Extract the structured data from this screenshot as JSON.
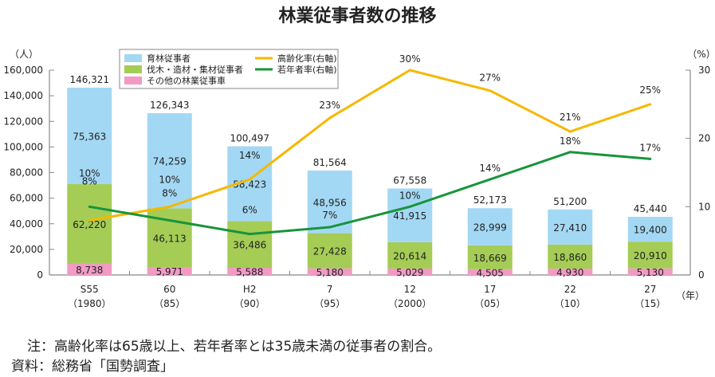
{
  "chart_data": {
    "type": "bar",
    "title": "林業従事者数の推移",
    "left_unit": "（人）",
    "right_unit": "（%）",
    "x_unit": "（年）",
    "categories": [
      {
        "label": "S55",
        "sub": "（1980）"
      },
      {
        "label": "60",
        "sub": "（85）"
      },
      {
        "label": "H2",
        "sub": "（90）"
      },
      {
        "label": "7",
        "sub": "（95）"
      },
      {
        "label": "12",
        "sub": "（2000）"
      },
      {
        "label": "17",
        "sub": "（05）"
      },
      {
        "label": "22",
        "sub": "（10）"
      },
      {
        "label": "27",
        "sub": "（15）"
      }
    ],
    "ylim": [
      0,
      160000
    ],
    "yticks": [
      "0",
      "20,000",
      "40,000",
      "60,000",
      "80,000",
      "100,000",
      "120,000",
      "140,000",
      "160,000"
    ],
    "y2lim": [
      0,
      30
    ],
    "y2ticks": [
      "0",
      "10",
      "20",
      "30"
    ],
    "series": [
      {
        "name": "その他の林業従事車",
        "kind": "bar",
        "color": "#f29ac4",
        "values": [
          8738,
          5971,
          5588,
          5180,
          5029,
          4505,
          4930,
          5130
        ],
        "labels": [
          "8,738",
          "5,971",
          "5,588",
          "5,180",
          "5,029",
          "4,505",
          "4,930",
          "5,130"
        ]
      },
      {
        "name": "伐木・造材・集材従事者",
        "kind": "bar",
        "color": "#a5cc55",
        "values": [
          62220,
          46113,
          36486,
          27428,
          20614,
          18669,
          18860,
          20910
        ],
        "labels": [
          "62,220",
          "46,113",
          "36,486",
          "27,428",
          "20,614",
          "18,669",
          "18,860",
          "20,910"
        ]
      },
      {
        "name": "育林従事者",
        "kind": "bar",
        "color": "#a3d8f4",
        "values": [
          75363,
          74259,
          58423,
          48956,
          41915,
          28999,
          27410,
          19400
        ],
        "labels": [
          "75,363",
          "74,259",
          "58,423",
          "48,956",
          "41,915",
          "28,999",
          "27,410",
          "19,400"
        ]
      },
      {
        "name": "高齢化率(右軸)",
        "kind": "line",
        "color": "#f5b800",
        "values": [
          8,
          10,
          14,
          23,
          30,
          27,
          21,
          25
        ],
        "labels": [
          "8%",
          "10%",
          "14%",
          "23%",
          "30%",
          "27%",
          "21%",
          "25%"
        ]
      },
      {
        "name": "若年者率(右軸)",
        "kind": "line",
        "color": "#17953a",
        "values": [
          10,
          8,
          6,
          7,
          10,
          14,
          18,
          17
        ],
        "labels": [
          "10%",
          "8%",
          "6%",
          "7%",
          "10%",
          "14%",
          "18%",
          "17%"
        ]
      }
    ],
    "totals": [
      "146,321",
      "126,343",
      "100,497",
      "81,564",
      "67,558",
      "52,173",
      "51,200",
      "45,440"
    ],
    "legend": {
      "position": "top-center",
      "items": [
        "育林従事者",
        "伐木・造材・集材従事者",
        "その他の林業従事車",
        "高齢化率(右軸)",
        "若年者率(右軸)"
      ]
    }
  },
  "notes": {
    "note": "注：高齢化率は65歳以上、若年者率とは35歳未満の従事者の割合。",
    "source": "資料：総務省「国勢調査」"
  }
}
